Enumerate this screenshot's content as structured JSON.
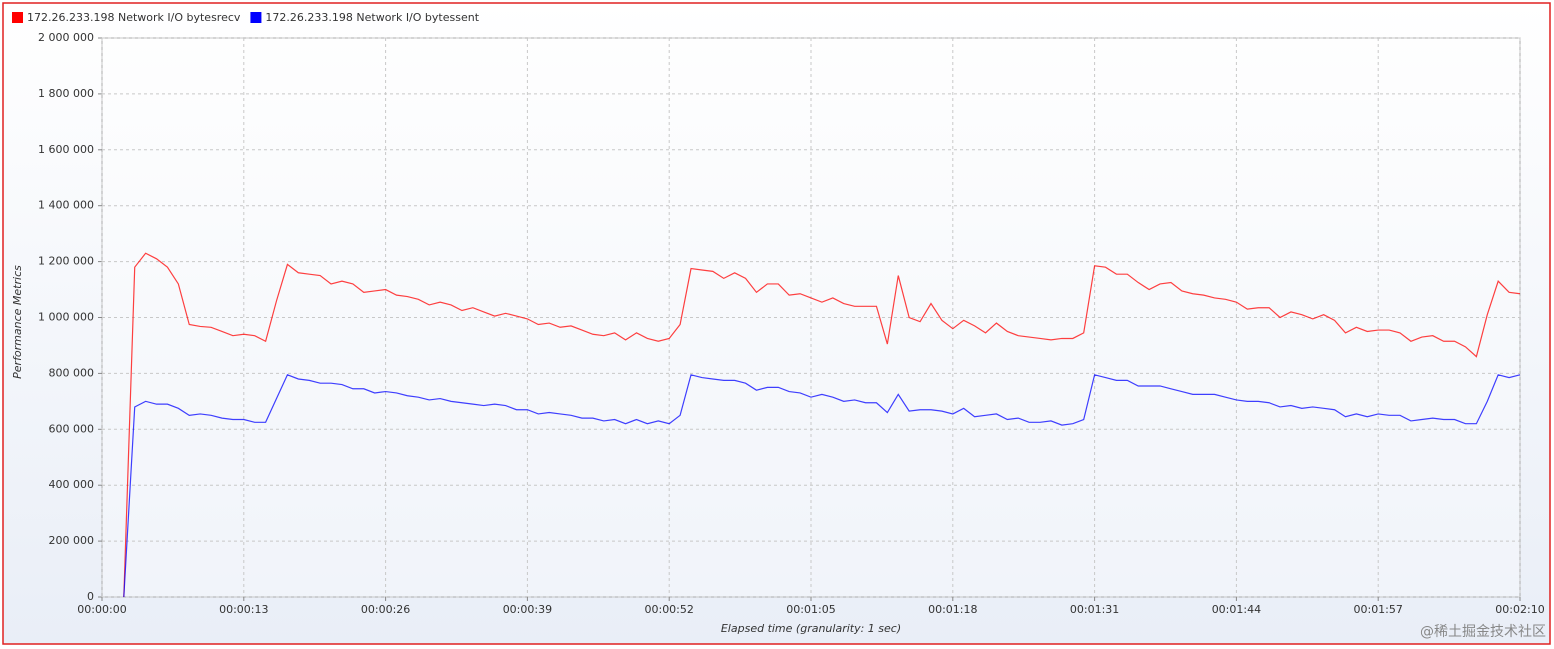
{
  "chart_data": {
    "type": "line",
    "xlabel": "Elapsed time (granularity: 1 sec)",
    "ylabel": "Performance Metrics",
    "annotation": "@稀土掘金技术社区",
    "legend": "top-left",
    "grid": true,
    "xlim": [
      0,
      130
    ],
    "ylim": [
      0,
      2000000
    ],
    "xticks": [
      {
        "value": 0,
        "label": "00:00:00"
      },
      {
        "value": 13,
        "label": "00:00:13"
      },
      {
        "value": 26,
        "label": "00:00:26"
      },
      {
        "value": 39,
        "label": "00:00:39"
      },
      {
        "value": 52,
        "label": "00:00:52"
      },
      {
        "value": 65,
        "label": "00:01:05"
      },
      {
        "value": 78,
        "label": "00:01:18"
      },
      {
        "value": 91,
        "label": "00:01:31"
      },
      {
        "value": 104,
        "label": "00:01:44"
      },
      {
        "value": 117,
        "label": "00:01:57"
      },
      {
        "value": 130,
        "label": "00:02:10"
      }
    ],
    "yticks": [
      0,
      {
        "value": 200000,
        "label": "200 000"
      },
      {
        "value": 400000,
        "label": "400 000"
      },
      {
        "value": 600000,
        "label": "600 000"
      },
      {
        "value": 800000,
        "label": "800 000"
      },
      {
        "value": 1000000,
        "label": "1 000 000"
      },
      {
        "value": 1200000,
        "label": "1 200 000"
      },
      {
        "value": 1400000,
        "label": "1 400 000"
      },
      {
        "value": 1600000,
        "label": "1 600 000"
      },
      {
        "value": 1800000,
        "label": "1 800 000"
      },
      {
        "value": 2000000,
        "label": "2 000 000"
      }
    ],
    "x": [
      2,
      3,
      4,
      5,
      6,
      7,
      8,
      9,
      10,
      11,
      12,
      13,
      14,
      15,
      16,
      17,
      18,
      19,
      20,
      21,
      22,
      23,
      24,
      25,
      26,
      27,
      28,
      29,
      30,
      31,
      32,
      33,
      34,
      35,
      36,
      37,
      38,
      39,
      40,
      41,
      42,
      43,
      44,
      45,
      46,
      47,
      48,
      49,
      50,
      51,
      52,
      53,
      54,
      55,
      56,
      57,
      58,
      59,
      60,
      61,
      62,
      63,
      64,
      65,
      66,
      67,
      68,
      69,
      70,
      71,
      72,
      73,
      74,
      75,
      76,
      77,
      78,
      79,
      80,
      81,
      82,
      83,
      84,
      85,
      86,
      87,
      88,
      89,
      90,
      91,
      92,
      93,
      94,
      95,
      96,
      97,
      98,
      99,
      100,
      101,
      102,
      103,
      104,
      105,
      106,
      107,
      108,
      109,
      110,
      111,
      112,
      113,
      114,
      115,
      116,
      117,
      118,
      119,
      120,
      121,
      122,
      123,
      124,
      125,
      126,
      127,
      128,
      129,
      130
    ],
    "series": [
      {
        "name": "172.26.233.198 Network I/O bytesrecv",
        "color": "#ff0000",
        "values": [
          0,
          1180000,
          1230000,
          1210000,
          1180000,
          1120000,
          975000,
          968000,
          965000,
          950000,
          935000,
          940000,
          935000,
          915000,
          1060000,
          1190000,
          1160000,
          1155000,
          1150000,
          1120000,
          1130000,
          1120000,
          1090000,
          1095000,
          1100000,
          1080000,
          1075000,
          1065000,
          1045000,
          1055000,
          1045000,
          1025000,
          1035000,
          1020000,
          1005000,
          1015000,
          1005000,
          995000,
          975000,
          980000,
          965000,
          970000,
          955000,
          940000,
          935000,
          945000,
          920000,
          945000,
          925000,
          915000,
          925000,
          975000,
          1175000,
          1170000,
          1165000,
          1140000,
          1160000,
          1140000,
          1090000,
          1120000,
          1120000,
          1080000,
          1085000,
          1070000,
          1055000,
          1070000,
          1050000,
          1040000,
          1040000,
          1040000,
          905000,
          1150000,
          1000000,
          985000,
          1050000,
          990000,
          960000,
          990000,
          970000,
          945000,
          980000,
          950000,
          935000,
          930000,
          925000,
          920000,
          925000,
          925000,
          945000,
          1185000,
          1180000,
          1155000,
          1155000,
          1125000,
          1100000,
          1120000,
          1125000,
          1095000,
          1085000,
          1080000,
          1070000,
          1065000,
          1055000,
          1030000,
          1035000,
          1035000,
          1000000,
          1020000,
          1010000,
          995000,
          1010000,
          990000,
          945000,
          965000,
          950000,
          955000,
          955000,
          945000,
          915000,
          930000,
          935000,
          915000,
          915000,
          895000,
          860000,
          1010000,
          1130000,
          1090000,
          1085000
        ]
      },
      {
        "name": "172.26.233.198 Network I/O bytessent",
        "color": "#0000ff",
        "values": [
          0,
          680000,
          700000,
          690000,
          690000,
          675000,
          650000,
          655000,
          650000,
          640000,
          635000,
          635000,
          625000,
          625000,
          710000,
          795000,
          780000,
          775000,
          765000,
          765000,
          760000,
          745000,
          745000,
          730000,
          735000,
          730000,
          720000,
          715000,
          705000,
          710000,
          700000,
          695000,
          690000,
          685000,
          690000,
          685000,
          670000,
          670000,
          655000,
          660000,
          655000,
          650000,
          640000,
          640000,
          630000,
          635000,
          620000,
          635000,
          620000,
          630000,
          620000,
          650000,
          795000,
          785000,
          780000,
          775000,
          775000,
          765000,
          740000,
          750000,
          750000,
          735000,
          730000,
          715000,
          725000,
          715000,
          700000,
          705000,
          695000,
          695000,
          660000,
          725000,
          665000,
          670000,
          670000,
          665000,
          655000,
          675000,
          645000,
          650000,
          655000,
          635000,
          640000,
          625000,
          625000,
          630000,
          615000,
          620000,
          635000,
          795000,
          785000,
          775000,
          775000,
          755000,
          755000,
          755000,
          745000,
          735000,
          725000,
          725000,
          725000,
          715000,
          705000,
          700000,
          700000,
          695000,
          680000,
          685000,
          675000,
          680000,
          675000,
          670000,
          645000,
          655000,
          645000,
          655000,
          650000,
          650000,
          630000,
          635000,
          640000,
          635000,
          635000,
          620000,
          620000,
          700000,
          795000,
          785000,
          795000
        ]
      }
    ]
  }
}
